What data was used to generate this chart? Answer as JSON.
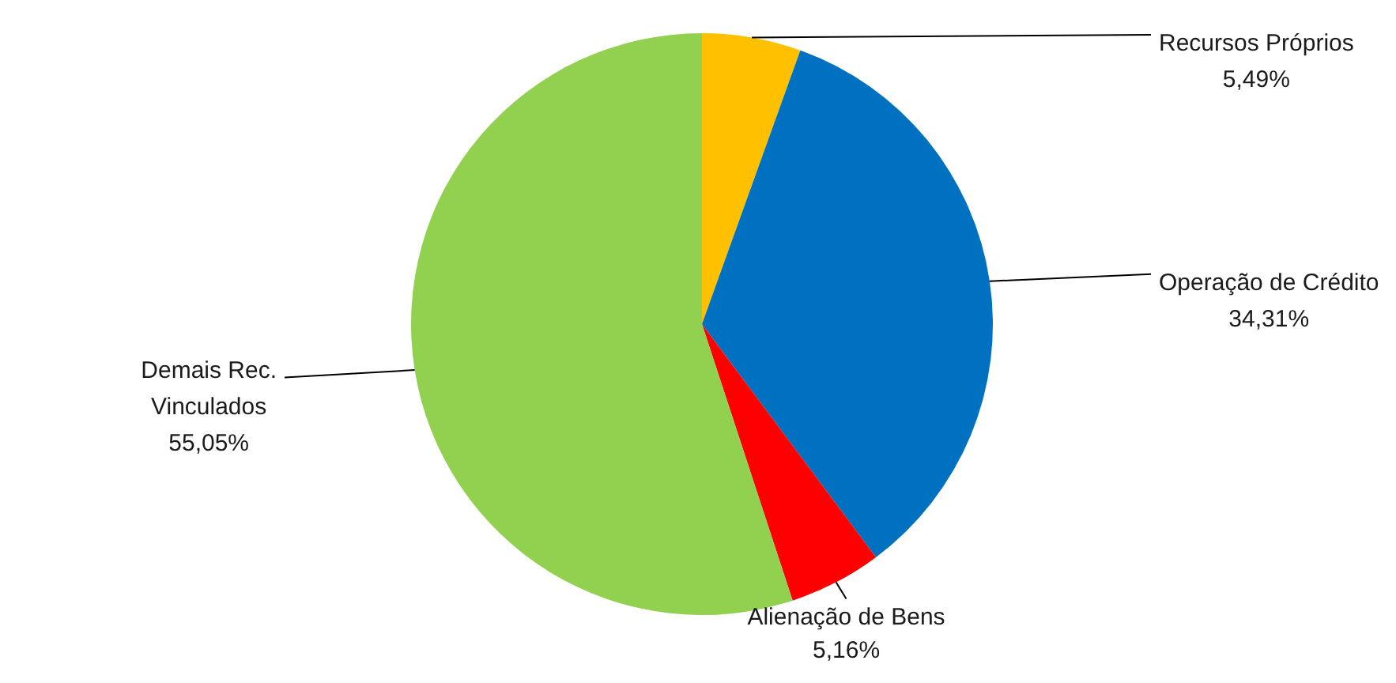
{
  "chart_data": {
    "type": "pie",
    "categories": [
      "Recursos Próprios",
      "Operação de Crédito",
      "Alienação de Bens",
      "Demais Rec. Vinculados"
    ],
    "values": [
      5.49,
      34.31,
      5.16,
      55.05
    ],
    "value_labels": [
      "5,49%",
      "34,31%",
      "5,16%",
      "55,05%"
    ],
    "colors": [
      "#ffc000",
      "#0070c0",
      "#ff0000",
      "#92d050"
    ],
    "legend": false
  }
}
